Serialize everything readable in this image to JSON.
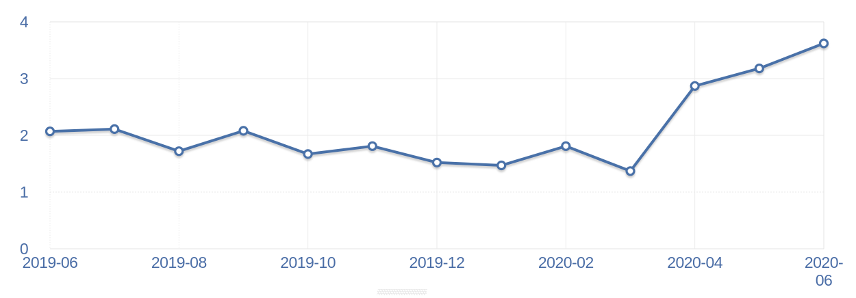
{
  "chart_data": {
    "type": "line",
    "title": "",
    "xlabel": "",
    "ylabel": "",
    "x": [
      "2019-06",
      "2019-07",
      "2019-08",
      "2019-09",
      "2019-10",
      "2019-11",
      "2019-12",
      "2020-01",
      "2020-02",
      "2020-03",
      "2020-04",
      "2020-05",
      "2020-06"
    ],
    "series": [
      {
        "name": "value",
        "values": [
          2.07,
          2.11,
          1.72,
          2.08,
          1.67,
          1.81,
          1.52,
          1.47,
          1.81,
          1.37,
          2.87,
          3.18,
          3.62
        ]
      }
    ],
    "x_tick_labels": [
      "2019-06",
      "2019-08",
      "2019-10",
      "2019-12",
      "2020-02",
      "2020-04",
      "2020-06"
    ],
    "y_ticks": [
      0,
      1,
      2,
      3,
      4
    ],
    "ylim": [
      0,
      4
    ],
    "grid": true,
    "legend": null,
    "marker_style": "open-circle",
    "colors": {
      "line": "#4a71a8",
      "marker_fill": "#ffffff",
      "marker_stroke": "#4a71a8",
      "axis_label": "#4a6da6",
      "gridline": "#eaeaea",
      "border": "#e3e3e3",
      "shadow": "#9a9a9a",
      "background": "#ffffff"
    }
  }
}
